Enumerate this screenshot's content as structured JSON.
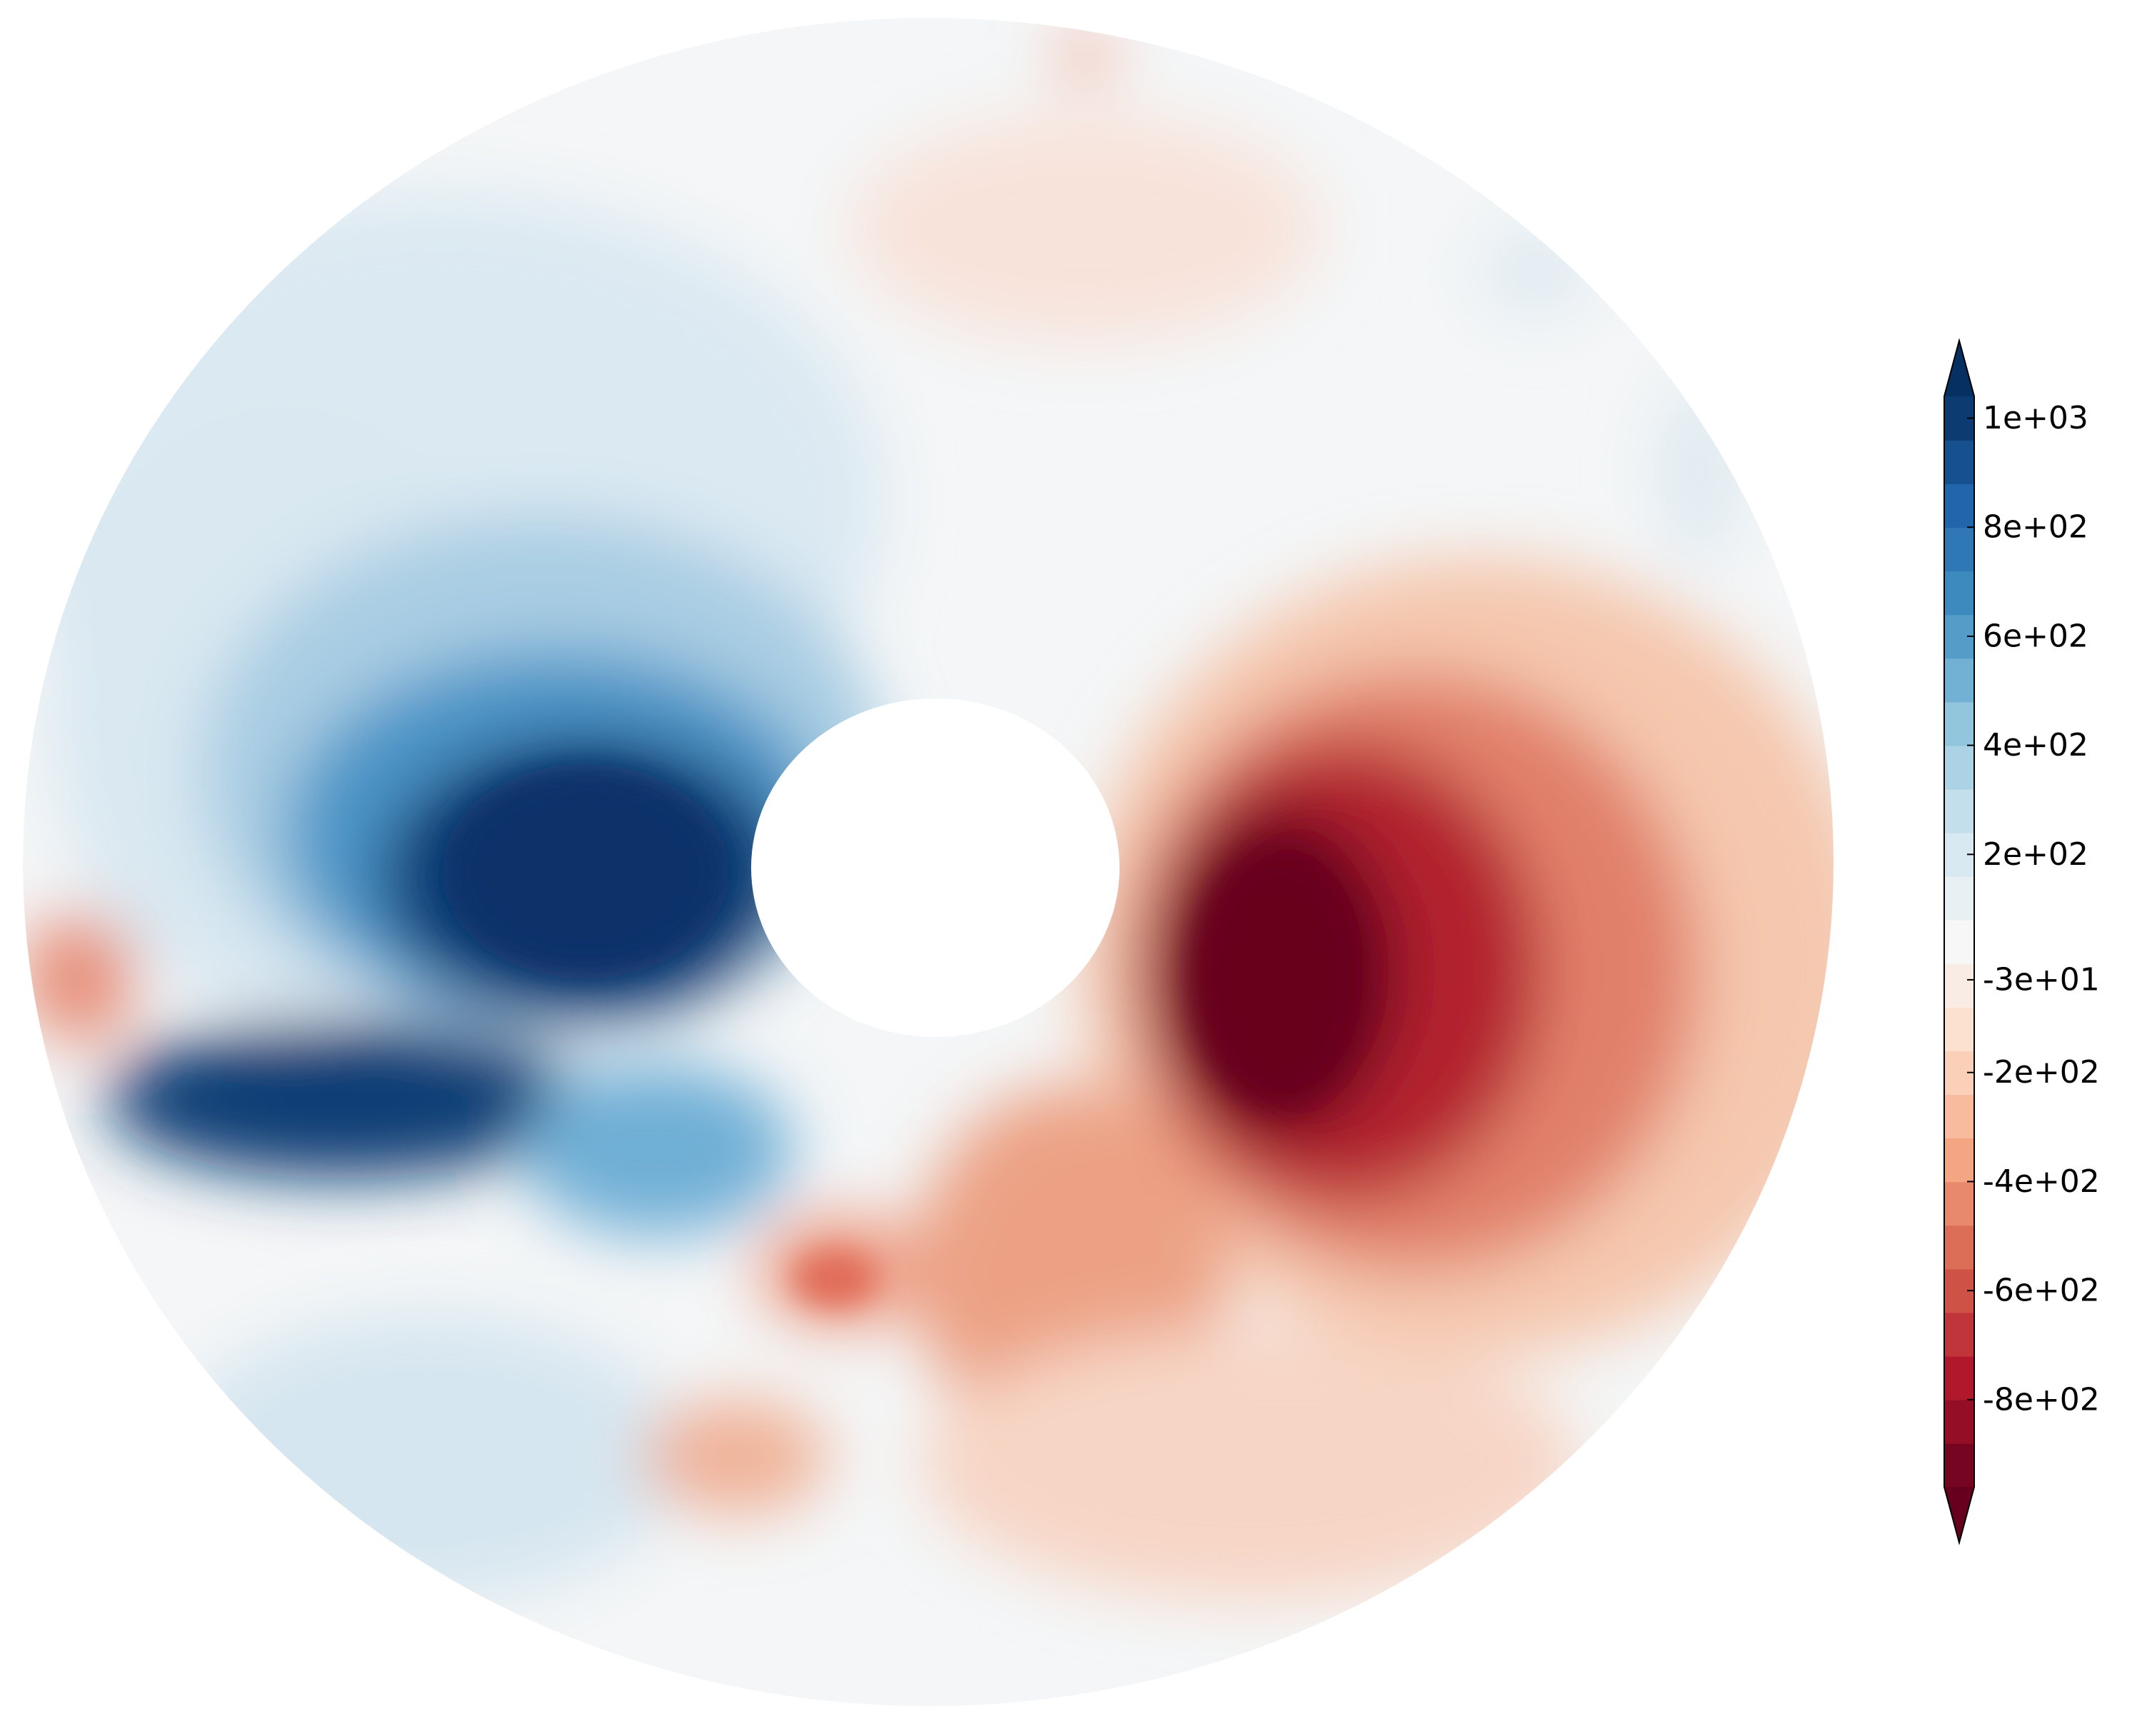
{
  "chart_data": {
    "type": "heatmap",
    "projection": "annulus",
    "title": "",
    "xlabel": "",
    "ylabel": "",
    "colormap": "RdBu",
    "colorbar": {
      "range": [
        -960,
        1040
      ],
      "levels": 25,
      "extend": "both",
      "placement": "right",
      "ticks": [
        {
          "value": 1000,
          "label": "1e+03"
        },
        {
          "value": 800,
          "label": "8e+02"
        },
        {
          "value": 600,
          "label": "6e+02"
        },
        {
          "value": 400,
          "label": "4e+02"
        },
        {
          "value": 200,
          "label": "2e+02"
        },
        {
          "value": -30,
          "label": "-3e+01"
        },
        {
          "value": -200,
          "label": "-2e+02"
        },
        {
          "value": -400,
          "label": "-4e+02"
        },
        {
          "value": -600,
          "label": "-6e+02"
        },
        {
          "value": -800,
          "label": "-8e+02"
        }
      ]
    },
    "features": [
      {
        "name": "strong positive lobe west of the inner hole",
        "peak": 1000
      },
      {
        "name": "strong negative lobe east of the inner hole",
        "peak": -960
      },
      {
        "name": "mixed small-scale eddies in the southern half",
        "range": [
          -450,
          450
        ]
      }
    ],
    "palette": {
      "positive_max": "#08306b",
      "neutral": "#f7f7f7",
      "negative_max": "#67001f"
    }
  }
}
